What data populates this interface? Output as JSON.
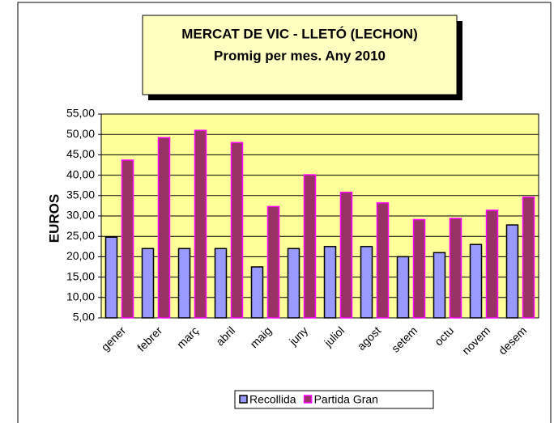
{
  "chart_data": {
    "type": "bar",
    "title": "MERCAT DE VIC - LLETÓ (LECHON)",
    "subtitle": "Promig per mes. Any 2010",
    "y_label": "EUROS",
    "categories": [
      "gener",
      "febrer",
      "març",
      "abril",
      "maig",
      "juny",
      "juliol",
      "agost",
      "setem",
      "octu",
      "novem",
      "desem"
    ],
    "series": [
      {
        "name": "Recollida",
        "color": "#9999ff",
        "edge_color": "#000000",
        "values": [
          24.8,
          22,
          22,
          22,
          17.5,
          22,
          22.5,
          22.5,
          20,
          21,
          23,
          27.8
        ]
      },
      {
        "name": "Partida Gran",
        "color": "#993366",
        "edge_color": "#ff00ff",
        "values": [
          43.7,
          49.2,
          51,
          48,
          32.3,
          40.1,
          35.8,
          33.2,
          29.1,
          29.4,
          31.4,
          34.6
        ]
      }
    ],
    "ylim": [
      5,
      55
    ],
    "yticks": [
      {
        "value": 5,
        "label": "5,00"
      },
      {
        "value": 10,
        "label": "10,00"
      },
      {
        "value": 15,
        "label": "15,00"
      },
      {
        "value": 20,
        "label": "20,00"
      },
      {
        "value": 25,
        "label": "25,00"
      },
      {
        "value": 30,
        "label": "30,00"
      },
      {
        "value": 35,
        "label": "35,00"
      },
      {
        "value": 40,
        "label": "40,00"
      },
      {
        "value": 45,
        "label": "45,00"
      },
      {
        "value": 50,
        "label": "50,00"
      },
      {
        "value": 55,
        "label": "55,00"
      }
    ],
    "grid": true,
    "plot_background": "#ffff99",
    "legend": "bottom"
  }
}
